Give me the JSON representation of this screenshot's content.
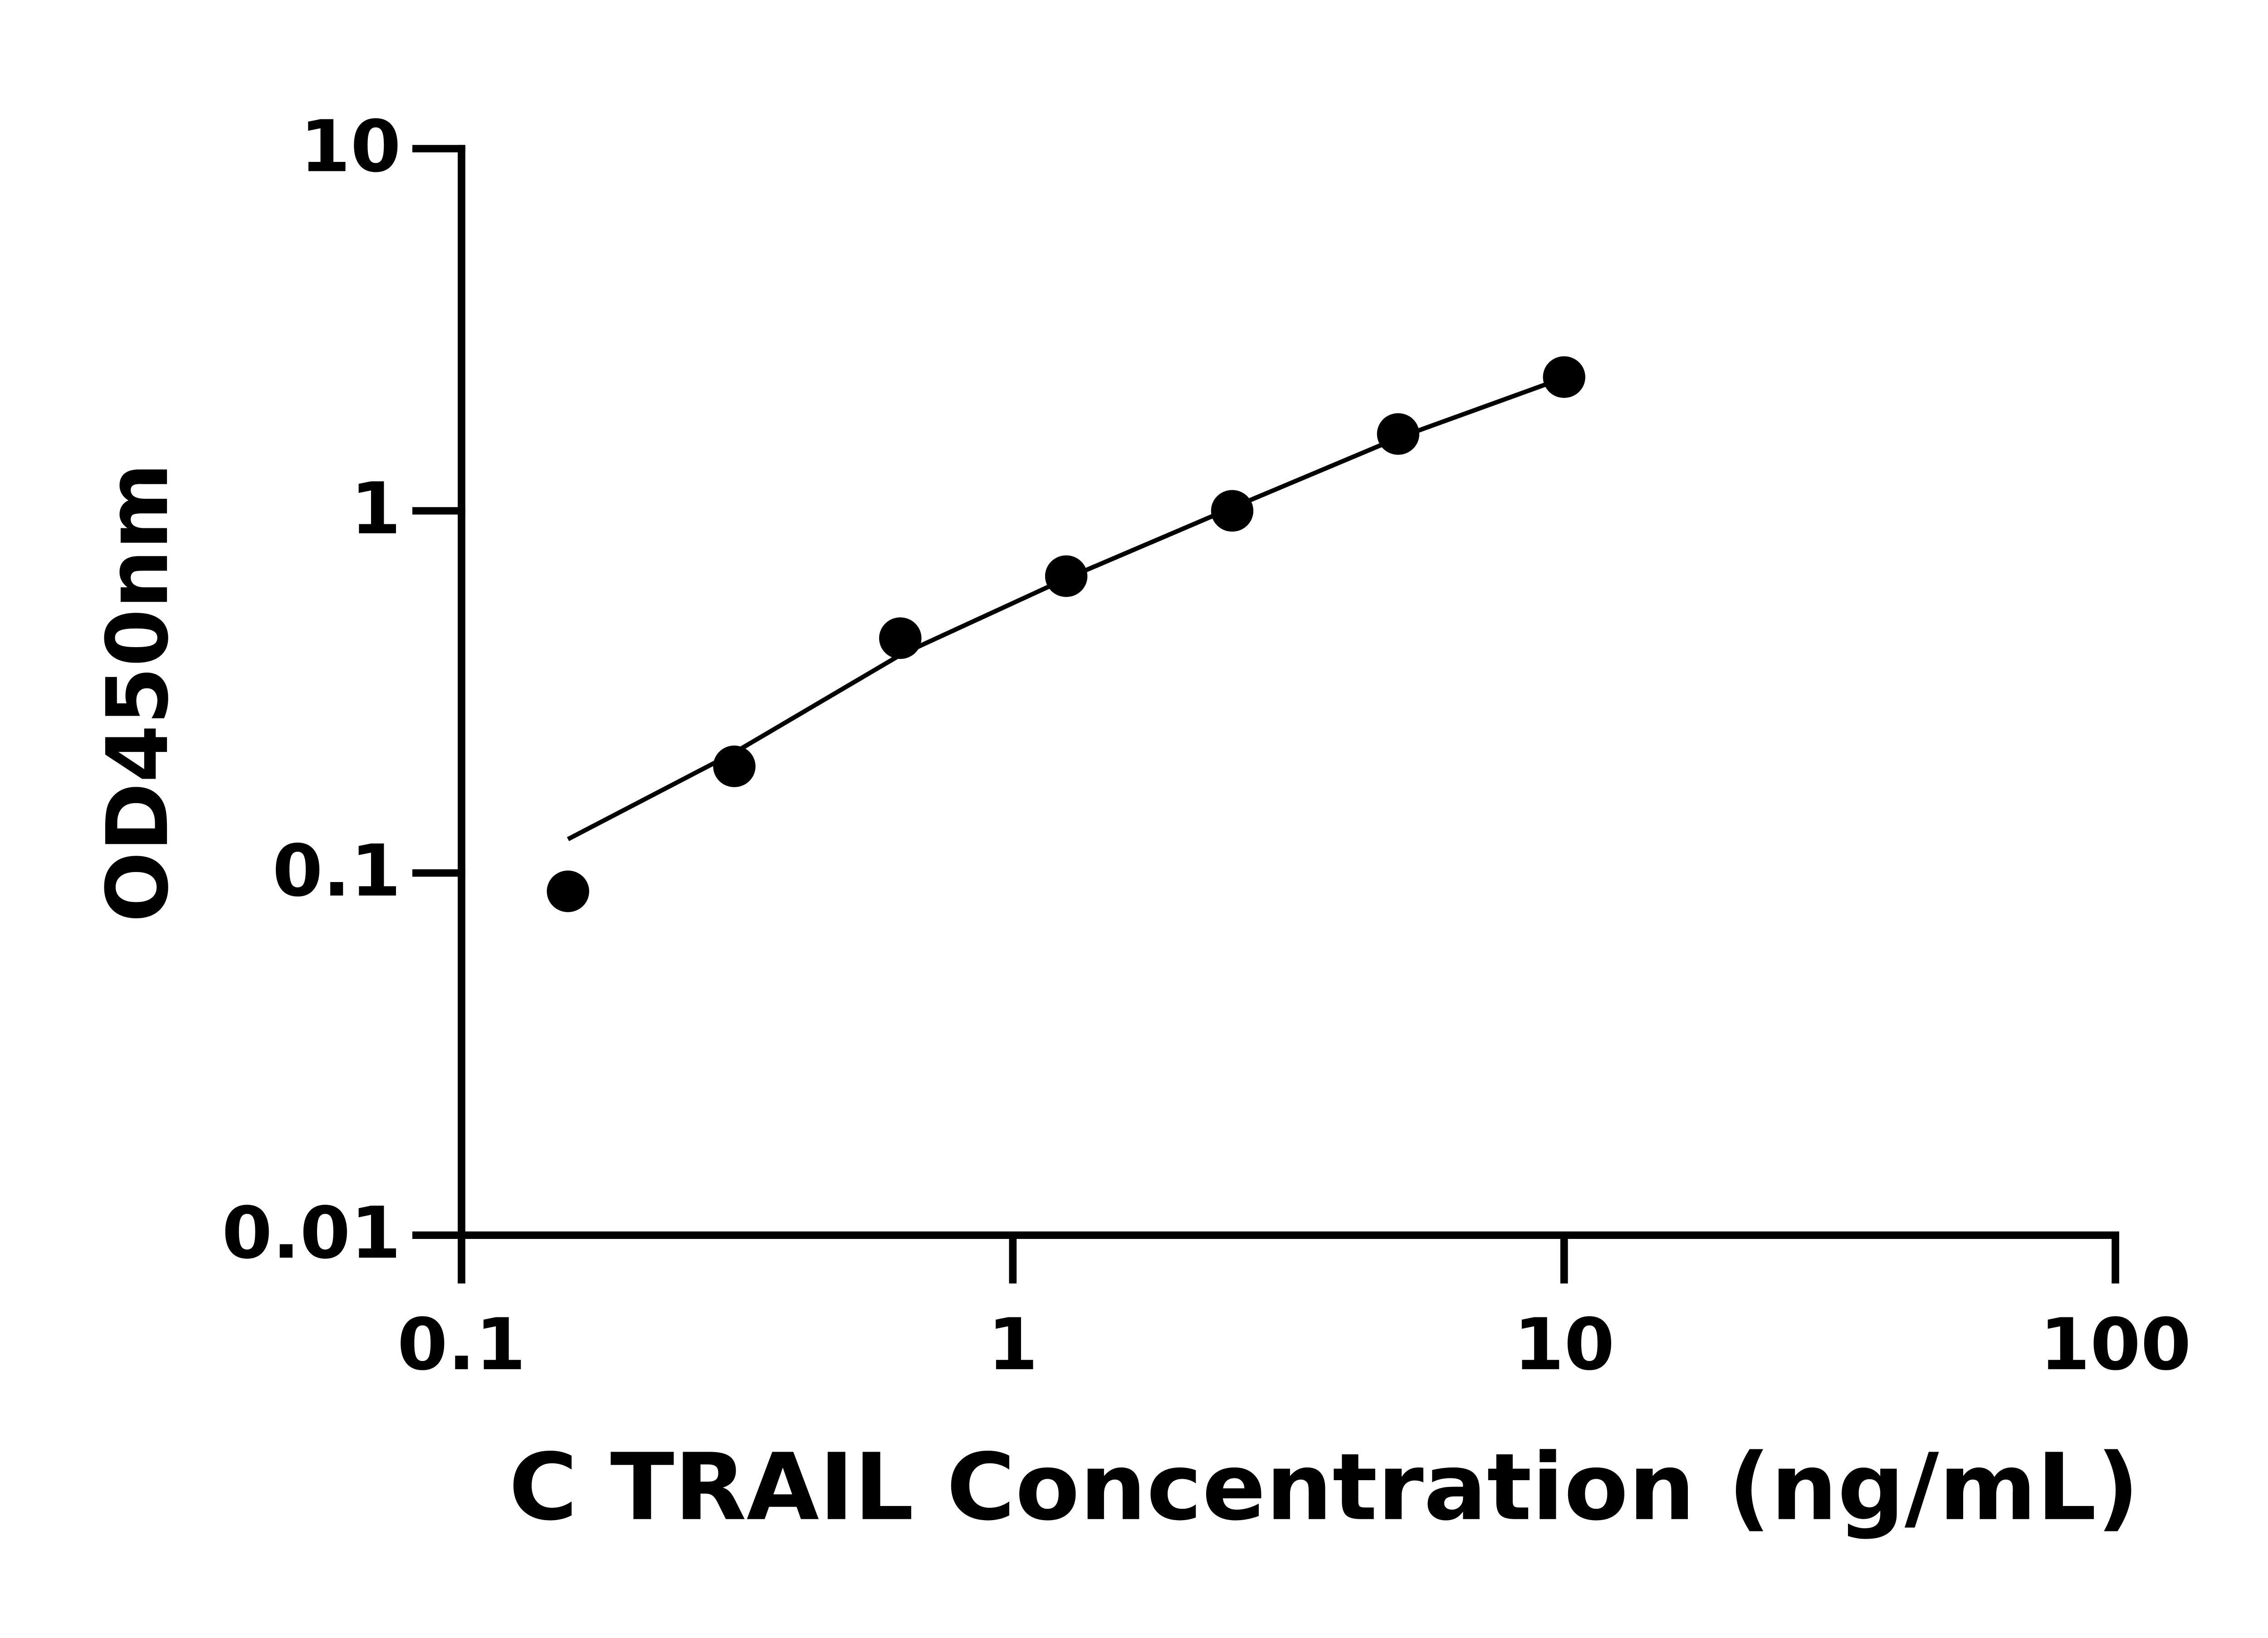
{
  "chart_data": {
    "type": "scatter",
    "xlabel": "C TRAIL Concentration (ng/mL)",
    "ylabel": "OD450nm",
    "xscale": "log",
    "yscale": "log",
    "xlim": [
      0.1,
      100
    ],
    "ylim": [
      0.01,
      10
    ],
    "xticks": [
      0.1,
      1,
      10,
      100
    ],
    "yticks": [
      0.01,
      0.1,
      1,
      10
    ],
    "series": [
      {
        "color": "#000000",
        "x": [
          0.156,
          0.3125,
          0.625,
          1.25,
          2.5,
          5,
          10
        ],
        "values": [
          0.089,
          0.197,
          0.445,
          0.66,
          1.0,
          1.63,
          2.34
        ]
      }
    ],
    "fit_line": {
      "color": "#000000",
      "x": [
        0.156,
        0.3125,
        0.625,
        1.25,
        2.5,
        5,
        10
      ],
      "values": [
        0.124,
        0.215,
        0.4,
        0.65,
        1.02,
        1.59,
        2.33
      ]
    }
  }
}
